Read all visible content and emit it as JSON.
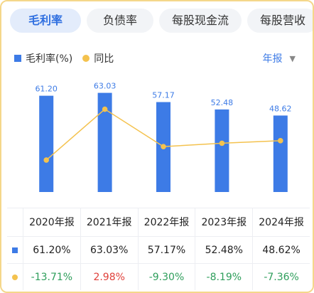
{
  "tabs": [
    {
      "label": "毛利率",
      "active": true
    },
    {
      "label": "负债率",
      "active": false
    },
    {
      "label": "每股现金流",
      "active": false
    },
    {
      "label": "每股营收",
      "active": false
    }
  ],
  "legend": {
    "bar": "毛利率(%)",
    "line": "同比"
  },
  "period_selector": "年报",
  "colors": {
    "bar": "#3d7be6",
    "line": "#f4c24e",
    "negative": "#2e9e5b",
    "positive": "#e0403a"
  },
  "chart_data": {
    "type": "bar",
    "categories": [
      "2020年报",
      "2021年报",
      "2022年报",
      "2023年报",
      "2024年报"
    ],
    "series": [
      {
        "name": "毛利率(%)",
        "type": "bar",
        "values": [
          61.2,
          63.03,
          57.17,
          52.48,
          48.62
        ],
        "labels": [
          "61.20",
          "63.03",
          "57.17",
          "52.48",
          "48.62"
        ]
      },
      {
        "name": "同比",
        "type": "line",
        "values": [
          -13.71,
          2.98,
          -9.3,
          -8.19,
          -7.36
        ]
      }
    ]
  },
  "table": {
    "headers": [
      "2020年报",
      "2021年报",
      "2022年报",
      "2023年报",
      "2024年报"
    ],
    "bar_row": [
      "61.20%",
      "63.03%",
      "57.17%",
      "52.48%",
      "48.62%"
    ],
    "line_row": [
      "-13.71%",
      "2.98%",
      "-9.30%",
      "-8.19%",
      "-7.36%"
    ]
  }
}
